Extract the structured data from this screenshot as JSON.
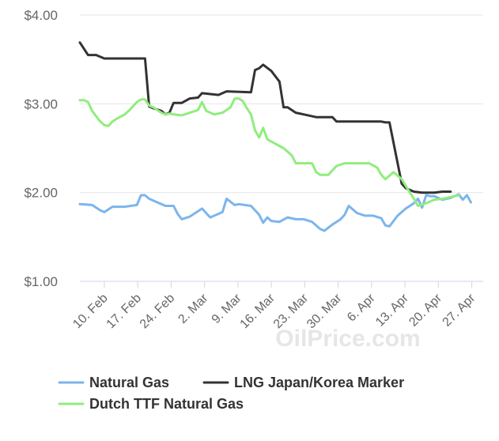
{
  "watermark": "OilPrice.com",
  "chart_data": {
    "type": "line",
    "ylim": [
      1.0,
      4.0
    ],
    "yticks": [
      {
        "value": 4.0,
        "label": "$4.00"
      },
      {
        "value": 3.0,
        "label": "$3.00"
      },
      {
        "value": 2.0,
        "label": "$2.00"
      },
      {
        "value": 1.0,
        "label": "$1.00"
      }
    ],
    "xlim": [
      1,
      100
    ],
    "xticks": [
      {
        "x": 7,
        "label": "10. Feb"
      },
      {
        "x": 15.2,
        "label": "17. Feb"
      },
      {
        "x": 23.4,
        "label": "24. Feb"
      },
      {
        "x": 31.6,
        "label": "2. Mar"
      },
      {
        "x": 39.8,
        "label": "9. Mar"
      },
      {
        "x": 48,
        "label": "16. Mar"
      },
      {
        "x": 56.2,
        "label": "23. Mar"
      },
      {
        "x": 64.4,
        "label": "30. Mar"
      },
      {
        "x": 72.6,
        "label": "6. Apr"
      },
      {
        "x": 80.8,
        "label": "13. Apr"
      },
      {
        "x": 89,
        "label": "20. Apr"
      },
      {
        "x": 97.2,
        "label": "27. Apr"
      }
    ],
    "grid": true,
    "legend_position": "bottom",
    "series": [
      {
        "name": "Natural Gas",
        "color": "#7cb5ec",
        "points": [
          [
            1,
            1.87
          ],
          [
            4,
            1.86
          ],
          [
            6,
            1.8
          ],
          [
            7,
            1.78
          ],
          [
            9,
            1.84
          ],
          [
            12,
            1.84
          ],
          [
            15,
            1.86
          ],
          [
            16,
            1.97
          ],
          [
            17,
            1.97
          ],
          [
            18,
            1.93
          ],
          [
            20,
            1.89
          ],
          [
            22,
            1.85
          ],
          [
            24,
            1.85
          ],
          [
            25,
            1.76
          ],
          [
            26,
            1.7
          ],
          [
            28,
            1.73
          ],
          [
            30,
            1.79
          ],
          [
            31,
            1.82
          ],
          [
            33,
            1.72
          ],
          [
            35,
            1.76
          ],
          [
            36,
            1.78
          ],
          [
            37,
            1.93
          ],
          [
            39,
            1.86
          ],
          [
            40,
            1.87
          ],
          [
            43,
            1.85
          ],
          [
            45,
            1.75
          ],
          [
            46,
            1.66
          ],
          [
            47,
            1.72
          ],
          [
            48,
            1.68
          ],
          [
            50,
            1.67
          ],
          [
            52,
            1.72
          ],
          [
            54,
            1.7
          ],
          [
            56,
            1.7
          ],
          [
            58,
            1.67
          ],
          [
            60,
            1.59
          ],
          [
            61,
            1.57
          ],
          [
            63,
            1.64
          ],
          [
            65,
            1.7
          ],
          [
            66,
            1.75
          ],
          [
            67,
            1.85
          ],
          [
            69,
            1.77
          ],
          [
            71,
            1.74
          ],
          [
            73,
            1.74
          ],
          [
            75,
            1.71
          ],
          [
            76,
            1.63
          ],
          [
            77,
            1.62
          ],
          [
            79,
            1.74
          ],
          [
            81,
            1.82
          ],
          [
            83,
            1.88
          ],
          [
            84,
            1.93
          ],
          [
            85,
            1.83
          ],
          [
            86,
            1.97
          ],
          [
            87,
            1.96
          ],
          [
            88,
            1.96
          ],
          [
            90,
            1.92
          ],
          [
            92,
            1.94
          ],
          [
            94,
            1.98
          ],
          [
            95,
            1.92
          ],
          [
            96,
            1.97
          ],
          [
            97,
            1.89
          ]
        ]
      },
      {
        "name": "LNG Japan/Korea Marker",
        "color": "#333333",
        "points": [
          [
            1,
            3.69
          ],
          [
            2,
            3.62
          ],
          [
            3,
            3.55
          ],
          [
            5,
            3.55
          ],
          [
            7,
            3.51
          ],
          [
            12,
            3.51
          ],
          [
            16,
            3.51
          ],
          [
            17,
            3.51
          ],
          [
            18,
            2.97
          ],
          [
            19,
            2.95
          ],
          [
            21,
            2.92
          ],
          [
            22,
            2.88
          ],
          [
            23,
            2.9
          ],
          [
            24,
            3.01
          ],
          [
            26,
            3.01
          ],
          [
            28,
            3.06
          ],
          [
            30,
            3.07
          ],
          [
            31,
            3.12
          ],
          [
            35,
            3.1
          ],
          [
            37,
            3.14
          ],
          [
            43,
            3.13
          ],
          [
            44,
            3.38
          ],
          [
            45,
            3.4
          ],
          [
            46,
            3.44
          ],
          [
            48,
            3.37
          ],
          [
            50,
            3.25
          ],
          [
            51,
            2.96
          ],
          [
            52,
            2.96
          ],
          [
            54,
            2.9
          ],
          [
            56,
            2.88
          ],
          [
            59,
            2.85
          ],
          [
            63,
            2.85
          ],
          [
            64,
            2.8
          ],
          [
            68,
            2.8
          ],
          [
            72,
            2.8
          ],
          [
            75,
            2.8
          ],
          [
            76,
            2.79
          ],
          [
            77,
            2.79
          ],
          [
            80,
            2.1
          ],
          [
            81,
            2.05
          ],
          [
            83,
            2.01
          ],
          [
            85,
            2.0
          ],
          [
            88,
            2.0
          ],
          [
            90,
            2.01
          ],
          [
            92,
            2.01
          ]
        ]
      },
      {
        "name": "Dutch TTF Natural Gas",
        "color": "#90ed7d",
        "points": [
          [
            1,
            3.04
          ],
          [
            2,
            3.04
          ],
          [
            3,
            3.02
          ],
          [
            4,
            2.92
          ],
          [
            5,
            2.86
          ],
          [
            6,
            2.8
          ],
          [
            7,
            2.76
          ],
          [
            8,
            2.75
          ],
          [
            9,
            2.8
          ],
          [
            10,
            2.83
          ],
          [
            12,
            2.88
          ],
          [
            13,
            2.92
          ],
          [
            14,
            2.97
          ],
          [
            15,
            3.02
          ],
          [
            16,
            3.05
          ],
          [
            17,
            3.05
          ],
          [
            18,
            2.98
          ],
          [
            19,
            2.96
          ],
          [
            20,
            2.93
          ],
          [
            21,
            2.9
          ],
          [
            22,
            2.88
          ],
          [
            23,
            2.89
          ],
          [
            24,
            2.88
          ],
          [
            26,
            2.87
          ],
          [
            28,
            2.9
          ],
          [
            30,
            2.93
          ],
          [
            31,
            3.02
          ],
          [
            32,
            2.92
          ],
          [
            34,
            2.88
          ],
          [
            36,
            2.9
          ],
          [
            38,
            2.96
          ],
          [
            39,
            3.06
          ],
          [
            40,
            3.06
          ],
          [
            41,
            3.03
          ],
          [
            42,
            2.95
          ],
          [
            43,
            2.88
          ],
          [
            44,
            2.7
          ],
          [
            45,
            2.62
          ],
          [
            46,
            2.73
          ],
          [
            47,
            2.6
          ],
          [
            49,
            2.55
          ],
          [
            51,
            2.5
          ],
          [
            53,
            2.42
          ],
          [
            54,
            2.33
          ],
          [
            56,
            2.33
          ],
          [
            58,
            2.33
          ],
          [
            59,
            2.23
          ],
          [
            60,
            2.2
          ],
          [
            62,
            2.2
          ],
          [
            64,
            2.3
          ],
          [
            66,
            2.33
          ],
          [
            68,
            2.33
          ],
          [
            70,
            2.33
          ],
          [
            72,
            2.33
          ],
          [
            74,
            2.28
          ],
          [
            75,
            2.2
          ],
          [
            76,
            2.15
          ],
          [
            78,
            2.23
          ],
          [
            80,
            2.15
          ],
          [
            82,
            2.0
          ],
          [
            83,
            1.93
          ],
          [
            84,
            1.85
          ],
          [
            86,
            1.88
          ],
          [
            88,
            1.92
          ],
          [
            90,
            1.93
          ],
          [
            92,
            1.95
          ],
          [
            94,
            1.97
          ]
        ]
      }
    ]
  }
}
